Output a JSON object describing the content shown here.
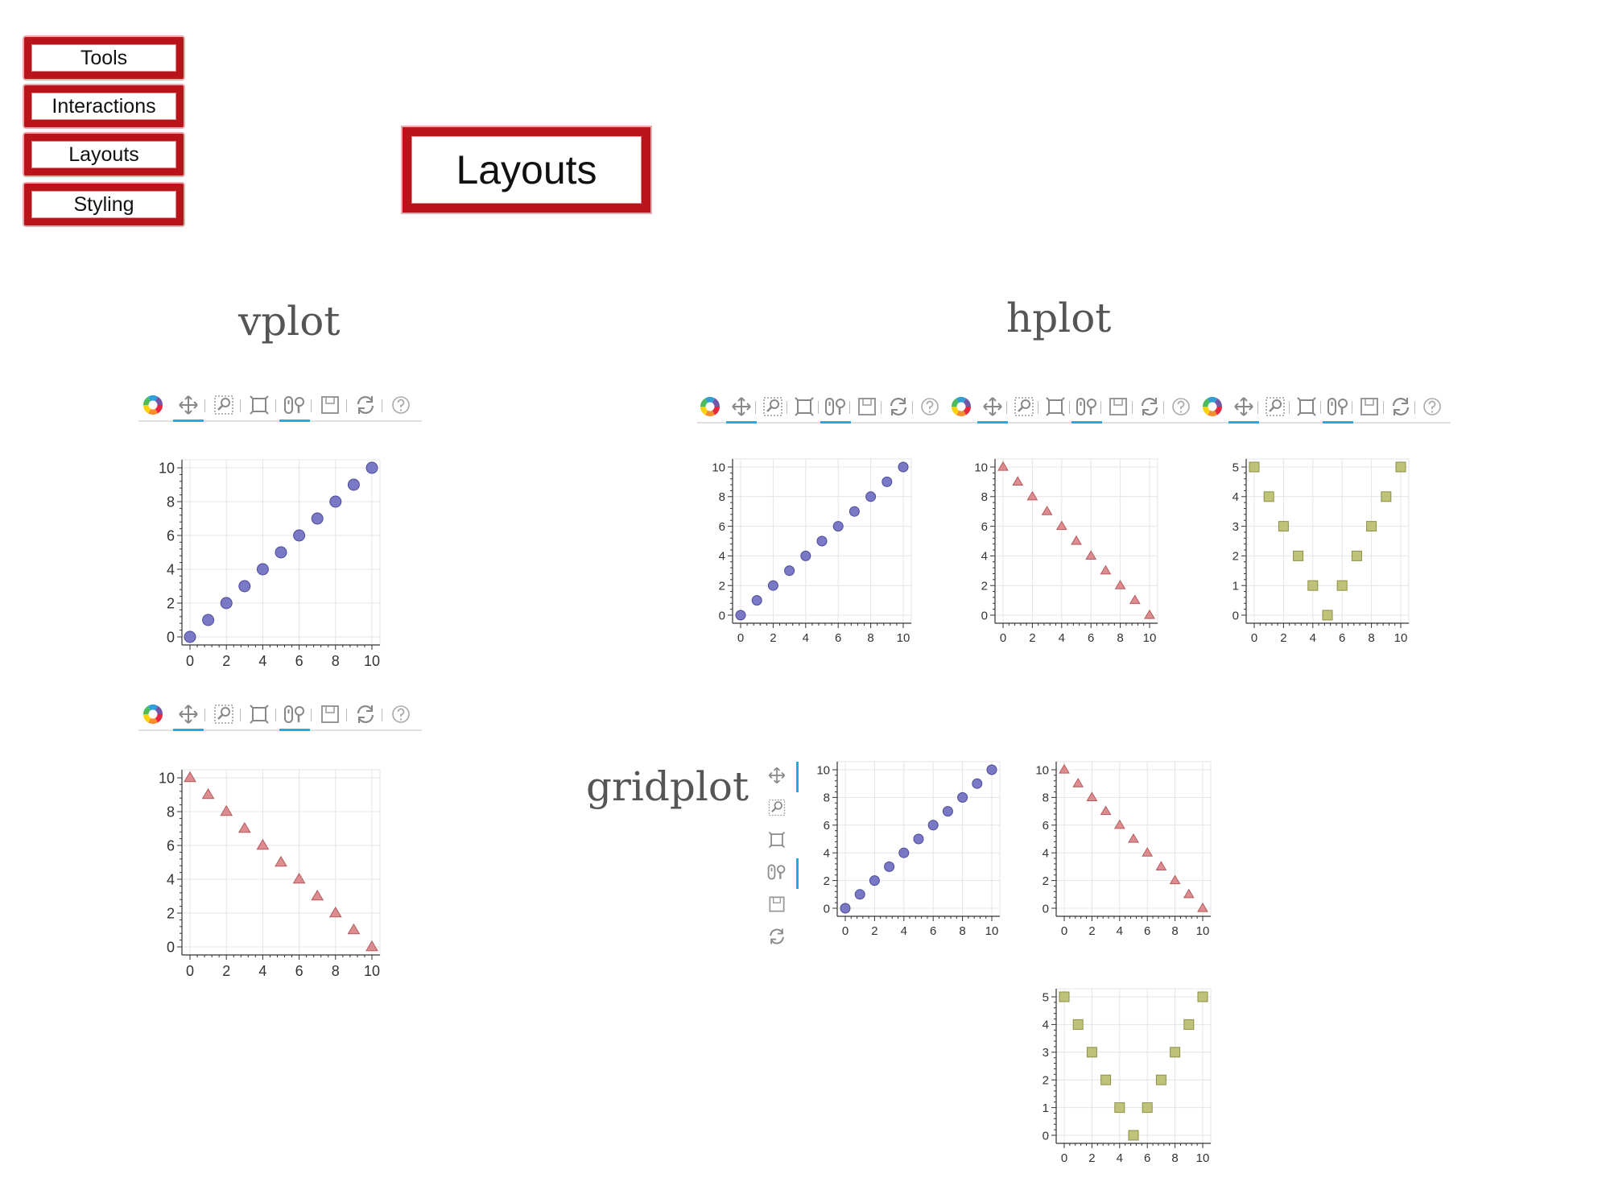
{
  "nav": {
    "items": [
      {
        "label": "Tools"
      },
      {
        "label": "Interactions"
      },
      {
        "label": "Layouts"
      },
      {
        "label": "Styling"
      }
    ]
  },
  "title": "Layouts",
  "sections": {
    "vplot": "vplot",
    "hplot": "hplot",
    "gridplot": "gridplot"
  },
  "toolbar": {
    "tools": [
      "bokeh-logo-icon",
      "pan-icon",
      "box-zoom-icon",
      "resize-icon",
      "wheel-zoom-icon",
      "save-icon",
      "reset-icon",
      "help-icon"
    ]
  },
  "colors": {
    "nav_border": "#b8141a",
    "circle": "#6a6ac0",
    "triangle": "#d98083",
    "square": "#b8bb6a",
    "active_tool": "#26aae1"
  },
  "chart_data": [
    {
      "id": "circles",
      "type": "scatter",
      "marker": "circle",
      "x": [
        0,
        1,
        2,
        3,
        4,
        5,
        6,
        7,
        8,
        9,
        10
      ],
      "y": [
        0,
        1,
        2,
        3,
        4,
        5,
        6,
        7,
        8,
        9,
        10
      ],
      "xlim": [
        0,
        10
      ],
      "ylim": [
        0,
        10
      ],
      "xticks": [
        0,
        2,
        4,
        6,
        8,
        10
      ],
      "yticks": [
        0,
        2,
        4,
        6,
        8,
        10
      ]
    },
    {
      "id": "triangles",
      "type": "scatter",
      "marker": "triangle",
      "x": [
        0,
        1,
        2,
        3,
        4,
        5,
        6,
        7,
        8,
        9,
        10
      ],
      "y": [
        10,
        9,
        8,
        7,
        6,
        5,
        4,
        3,
        2,
        1,
        0
      ],
      "xlim": [
        0,
        10
      ],
      "ylim": [
        0,
        10
      ],
      "xticks": [
        0,
        2,
        4,
        6,
        8,
        10
      ],
      "yticks": [
        0,
        2,
        4,
        6,
        8,
        10
      ]
    },
    {
      "id": "squares",
      "type": "scatter",
      "marker": "square",
      "x": [
        0,
        1,
        2,
        3,
        4,
        5,
        6,
        7,
        8,
        9,
        10
      ],
      "y": [
        5,
        4,
        3,
        2,
        1,
        0,
        1,
        2,
        3,
        4,
        5
      ],
      "xlim": [
        0,
        10
      ],
      "ylim": [
        0,
        5
      ],
      "xticks": [
        0,
        2,
        4,
        6,
        8,
        10
      ],
      "yticks": [
        0,
        1,
        2,
        3,
        4,
        5
      ]
    }
  ]
}
